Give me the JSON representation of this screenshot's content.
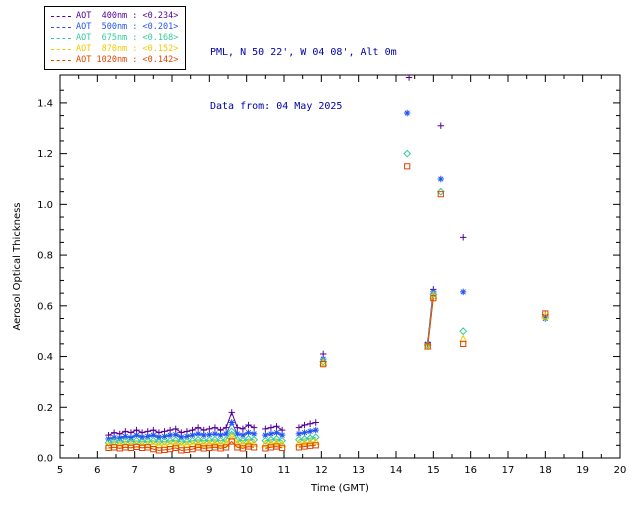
{
  "header": {
    "site_line": "PML, N 50 22', W 04 08', Alt 0m",
    "date_line": "Data from: 04 May 2025",
    "color": "#0000aa"
  },
  "chart_data": {
    "type": "scatter",
    "title": "",
    "xlabel": "Time (GMT)",
    "ylabel": "Aerosol Optical Thickness",
    "xlim": [
      5,
      20
    ],
    "ylim": [
      0,
      1.51
    ],
    "xticks": [
      5,
      6,
      7,
      8,
      9,
      10,
      11,
      12,
      13,
      14,
      15,
      16,
      17,
      18,
      19,
      20
    ],
    "yticks": [
      0.0,
      0.2,
      0.4,
      0.6,
      0.8,
      1.0,
      1.2,
      1.4
    ],
    "grid": false,
    "legend_position": "top-left",
    "connect_max_dx": 0.16,
    "series": [
      {
        "id": "400nm",
        "name": "AOT 400nm",
        "mean": "<0.234>",
        "legend": "AOT  400nm : <0.234>",
        "color": "#550099",
        "marker": "plus",
        "x": [
          6.3,
          6.45,
          6.6,
          6.75,
          6.9,
          7.05,
          7.2,
          7.35,
          7.5,
          7.65,
          7.8,
          7.95,
          8.1,
          8.25,
          8.4,
          8.55,
          8.7,
          8.85,
          9.0,
          9.15,
          9.3,
          9.45,
          9.6,
          9.75,
          9.9,
          10.05,
          10.2,
          10.5,
          10.65,
          10.8,
          10.95,
          11.4,
          11.55,
          11.7,
          11.85,
          12.05,
          14.35,
          14.85,
          15.0,
          15.2,
          15.8,
          18.0
        ],
        "y": [
          0.09,
          0.1,
          0.095,
          0.105,
          0.1,
          0.11,
          0.1,
          0.105,
          0.11,
          0.1,
          0.105,
          0.11,
          0.115,
          0.1,
          0.105,
          0.11,
          0.12,
          0.11,
          0.115,
          0.12,
          0.11,
          0.12,
          0.18,
          0.12,
          0.115,
          0.13,
          0.12,
          0.115,
          0.12,
          0.125,
          0.11,
          0.12,
          0.13,
          0.135,
          0.14,
          0.41,
          1.5,
          0.455,
          0.665,
          1.31,
          0.87,
          0.565
        ]
      },
      {
        "id": "500nm",
        "name": "AOT 500nm",
        "mean": "<0.201>",
        "legend": "AOT  500nm : <0.201>",
        "color": "#2255ee",
        "marker": "asterisk",
        "x": [
          6.3,
          6.45,
          6.6,
          6.75,
          6.9,
          7.05,
          7.2,
          7.35,
          7.5,
          7.65,
          7.8,
          7.95,
          8.1,
          8.25,
          8.4,
          8.55,
          8.7,
          8.85,
          9.0,
          9.15,
          9.3,
          9.45,
          9.6,
          9.75,
          9.9,
          10.05,
          10.2,
          10.5,
          10.65,
          10.8,
          10.95,
          11.4,
          11.55,
          11.7,
          11.85,
          12.05,
          14.3,
          14.85,
          15.0,
          15.2,
          15.8,
          18.0
        ],
        "y": [
          0.075,
          0.08,
          0.078,
          0.085,
          0.08,
          0.09,
          0.082,
          0.085,
          0.09,
          0.082,
          0.085,
          0.09,
          0.092,
          0.082,
          0.085,
          0.09,
          0.095,
          0.09,
          0.092,
          0.095,
          0.09,
          0.095,
          0.14,
          0.095,
          0.09,
          0.1,
          0.095,
          0.09,
          0.095,
          0.1,
          0.09,
          0.095,
          0.1,
          0.105,
          0.11,
          0.39,
          1.36,
          0.45,
          0.655,
          1.1,
          0.655,
          0.55
        ]
      },
      {
        "id": "675nm",
        "name": "AOT 675nm",
        "mean": "<0.168>",
        "legend": "AOT  675nm : <0.168>",
        "color": "#33cc99",
        "marker": "diamond",
        "x": [
          6.3,
          6.45,
          6.6,
          6.75,
          6.9,
          7.05,
          7.2,
          7.35,
          7.5,
          7.65,
          7.8,
          7.95,
          8.1,
          8.25,
          8.4,
          8.55,
          8.7,
          8.85,
          9.0,
          9.15,
          9.3,
          9.45,
          9.6,
          9.75,
          9.9,
          10.05,
          10.2,
          10.5,
          10.65,
          10.8,
          10.95,
          11.4,
          11.55,
          11.7,
          11.85,
          12.05,
          14.3,
          14.85,
          15.0,
          15.2,
          15.8,
          18.0
        ],
        "y": [
          0.06,
          0.065,
          0.062,
          0.066,
          0.063,
          0.068,
          0.064,
          0.066,
          0.068,
          0.063,
          0.065,
          0.068,
          0.07,
          0.063,
          0.065,
          0.068,
          0.072,
          0.068,
          0.07,
          0.072,
          0.068,
          0.072,
          0.105,
          0.072,
          0.068,
          0.075,
          0.072,
          0.068,
          0.072,
          0.075,
          0.068,
          0.072,
          0.075,
          0.078,
          0.082,
          0.38,
          1.2,
          0.445,
          0.645,
          1.05,
          0.5,
          0.555
        ]
      },
      {
        "id": "870nm",
        "name": "AOT 870nm",
        "mean": "<0.152>",
        "legend": "AOT  870nm : <0.152>",
        "color": "#eecc00",
        "marker": "triangle",
        "x": [
          6.3,
          6.45,
          6.6,
          6.75,
          6.9,
          7.05,
          7.2,
          7.35,
          7.5,
          7.65,
          7.8,
          7.95,
          8.1,
          8.25,
          8.4,
          8.55,
          8.7,
          8.85,
          9.0,
          9.15,
          9.3,
          9.45,
          9.6,
          9.75,
          9.9,
          10.05,
          10.2,
          10.5,
          10.65,
          10.8,
          10.95,
          11.4,
          11.55,
          11.7,
          11.85,
          12.05,
          14.85,
          15.0,
          15.8,
          18.0
        ],
        "y": [
          0.05,
          0.053,
          0.051,
          0.054,
          0.052,
          0.055,
          0.052,
          0.054,
          0.055,
          0.051,
          0.053,
          0.055,
          0.057,
          0.051,
          0.053,
          0.055,
          0.058,
          0.055,
          0.057,
          0.058,
          0.055,
          0.058,
          0.085,
          0.058,
          0.055,
          0.06,
          0.058,
          0.055,
          0.058,
          0.06,
          0.055,
          0.058,
          0.06,
          0.062,
          0.065,
          0.375,
          0.44,
          0.64,
          0.47,
          0.56
        ]
      },
      {
        "id": "1020nm",
        "name": "AOT 1020nm",
        "mean": "<0.142>",
        "legend": "AOT 1020nm : <0.142>",
        "color": "#dd4400",
        "marker": "square",
        "x": [
          6.3,
          6.45,
          6.6,
          6.75,
          6.9,
          7.05,
          7.2,
          7.35,
          7.5,
          7.65,
          7.8,
          7.95,
          8.1,
          8.25,
          8.4,
          8.55,
          8.7,
          8.85,
          9.0,
          9.15,
          9.3,
          9.45,
          9.6,
          9.75,
          9.9,
          10.05,
          10.2,
          10.5,
          10.65,
          10.8,
          10.95,
          11.4,
          11.55,
          11.7,
          11.85,
          12.05,
          14.3,
          14.85,
          15.0,
          15.2,
          15.8,
          18.0
        ],
        "y": [
          0.04,
          0.042,
          0.038,
          0.042,
          0.04,
          0.044,
          0.04,
          0.042,
          0.035,
          0.03,
          0.032,
          0.035,
          0.04,
          0.03,
          0.032,
          0.035,
          0.042,
          0.038,
          0.04,
          0.042,
          0.038,
          0.042,
          0.065,
          0.042,
          0.038,
          0.045,
          0.042,
          0.038,
          0.042,
          0.045,
          0.04,
          0.042,
          0.045,
          0.048,
          0.05,
          0.37,
          1.15,
          0.44,
          0.63,
          1.04,
          0.45,
          0.57
        ]
      }
    ]
  }
}
